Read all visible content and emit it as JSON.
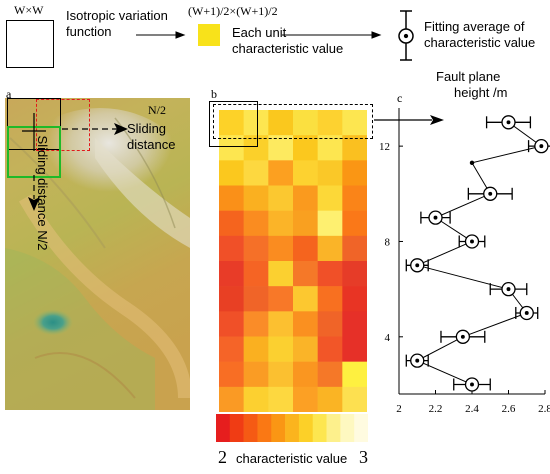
{
  "legend": {
    "window_label": "W×W",
    "iv_function_line1": "Isotropic variation",
    "iv_function_line2": "function",
    "unit_formula": "(W+1)/2×(W+1)/2",
    "unit_value_line1": "Each unit",
    "unit_value_line2": "characteristic value",
    "fit_line1": "Fitting average of",
    "fit_line2": "characteristic value"
  },
  "panel_a": {
    "tag": "a",
    "half_label_top": "N/2",
    "sliding_label_line1": "Sliding",
    "sliding_label_line2": "distance",
    "vertical_label": "Sliding distance N/2"
  },
  "panel_b": {
    "tag": "b",
    "colorbar_min": "2",
    "colorbar_title": "characteristic value",
    "colorbar_max": "3",
    "colorbar_colors": [
      "#e61e1e",
      "#f03c14",
      "#f55a14",
      "#fa7814",
      "#fa9614",
      "#fbb41e",
      "#fcd028",
      "#fde650",
      "#fdf08c",
      "#fef8c0",
      "#fffbe0"
    ],
    "grid_colors": [
      [
        "#fdd228",
        "#fde650",
        "#fac81e",
        "#fbe040",
        "#fdd230",
        "#fde650"
      ],
      [
        "#fde650",
        "#fbd02a",
        "#fdea60",
        "#fbc81e",
        "#fde650",
        "#fac020"
      ],
      [
        "#fbc81e",
        "#fdd840",
        "#fca020",
        "#fdd230",
        "#fac828",
        "#fa9614"
      ],
      [
        "#fa9018",
        "#fab020",
        "#fbc830",
        "#fa9a1e",
        "#fcd838",
        "#fa8418"
      ],
      [
        "#f5641e",
        "#fa8c20",
        "#fbb428",
        "#f9a020",
        "#fef070",
        "#fa7818"
      ],
      [
        "#f05028",
        "#f57028",
        "#fa8c20",
        "#f5641e",
        "#fab428",
        "#f06428"
      ],
      [
        "#e83c28",
        "#f56424",
        "#fbd030",
        "#f57828",
        "#f05028",
        "#e63c28"
      ],
      [
        "#e84024",
        "#f06428",
        "#f87828",
        "#fcc830",
        "#f87020",
        "#e83424"
      ],
      [
        "#f05028",
        "#fa8c28",
        "#fcc030",
        "#fa9020",
        "#f06428",
        "#e63028"
      ],
      [
        "#f56428",
        "#fab020",
        "#fbd030",
        "#fab428",
        "#f25628",
        "#e63028"
      ],
      [
        "#f86e24",
        "#fa9c24",
        "#fbc030",
        "#fa9620",
        "#f57828",
        "#fef040"
      ],
      [
        "#fa9a24",
        "#fcd030",
        "#fdd840",
        "#fca024",
        "#fab424",
        "#fde050"
      ]
    ]
  },
  "panel_c": {
    "tag": "c",
    "ylabel_line1": "Fault plane",
    "ylabel_line2": "height /m"
  },
  "chart_data": {
    "type": "line",
    "title": "",
    "xlabel": "",
    "ylabel": "Fault plane height /m",
    "xlim": [
      2,
      2.8
    ],
    "ylim": [
      1.6,
      13.6
    ],
    "xticks": [
      2,
      2.2,
      2.4,
      2.6,
      2.8
    ],
    "yticks": [
      4,
      8,
      12
    ],
    "points": [
      {
        "y": 13,
        "x": 2.6,
        "err": 0.12
      },
      {
        "y": 12,
        "x": 2.78,
        "err": 0.07
      },
      {
        "y": 10,
        "x": 2.5,
        "err": 0.12
      },
      {
        "y": 9,
        "x": 2.2,
        "err": 0.08
      },
      {
        "y": 8,
        "x": 2.4,
        "err": 0.07
      },
      {
        "y": 7,
        "x": 2.1,
        "err": 0.06
      },
      {
        "y": 6,
        "x": 2.6,
        "err": 0.1
      },
      {
        "y": 5,
        "x": 2.7,
        "err": 0.06
      },
      {
        "y": 4,
        "x": 2.35,
        "err": 0.12
      },
      {
        "y": 3,
        "x": 2.1,
        "err": 0.06
      },
      {
        "y": 2,
        "x": 2.4,
        "err": 0.1
      }
    ],
    "extra_marker": {
      "y": 11.3,
      "x": 2.4
    }
  }
}
